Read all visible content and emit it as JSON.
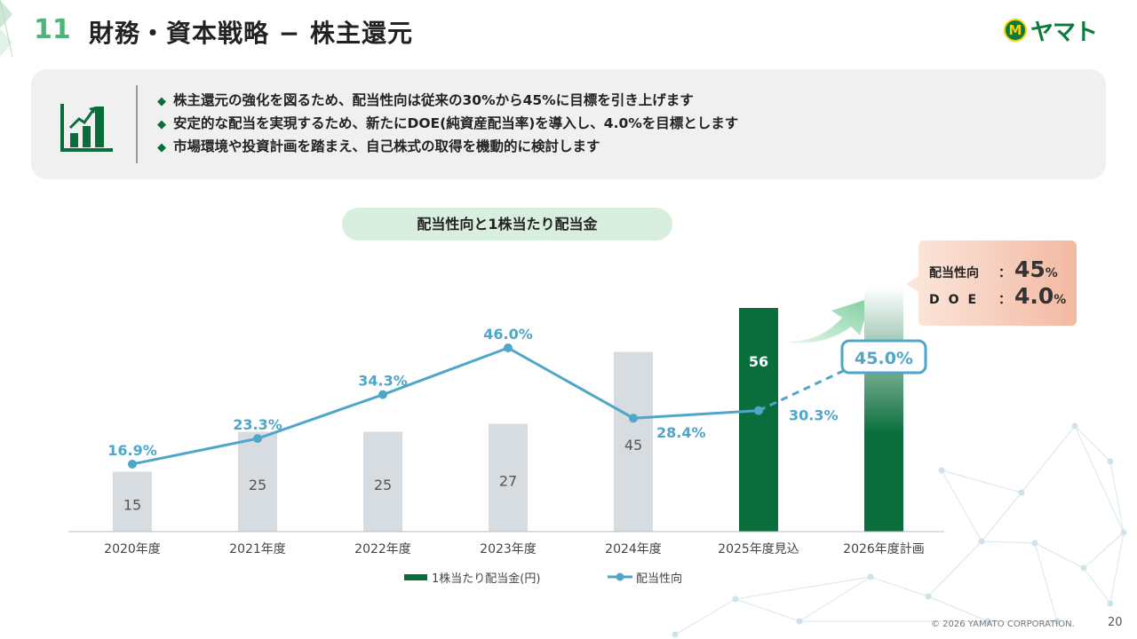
{
  "header": {
    "slide_number": "11",
    "title": "財務・資本戦略 − 株主還元",
    "logo_text": "ヤマト",
    "logo_mark": "M"
  },
  "summary": {
    "icon": "bar-chart-growth-icon",
    "bullets": [
      "株主還元の強化を図るため、配当性向は従来の30%から45%に目標を引き上げます",
      "安定的な配当を実現するため、新たにDOE(純資産配当率)を導入し、4.0%を目標とします",
      "市場環境や投資計画を踏まえ、自己株式の取得を機動的に検討します"
    ],
    "bullet_marker": "◆"
  },
  "callout": {
    "payout_label": "配当性向",
    "payout_colon": "：",
    "payout_value": "45",
    "payout_unit": "%",
    "doe_label": "DOE",
    "doe_colon": "：",
    "doe_value": "4.0",
    "doe_unit": "%"
  },
  "colors": {
    "accent_green": "#4bb57a",
    "dark_green": "#0a6e3c",
    "bar_gray": "#d6dcdf",
    "line_blue": "#4fa6c9",
    "callout_orange": "#f3b9a2"
  },
  "chart_data": {
    "type": "bar",
    "title": "配当性向と1株当たり配当金",
    "categories": [
      "2020年度",
      "2021年度",
      "2022年度",
      "2023年度",
      "2024年度",
      "2025年度見込",
      "2026年度計画"
    ],
    "series": [
      {
        "name": "1株当たり配当金(円)",
        "type": "bar",
        "values": [
          15,
          25,
          25,
          27,
          45,
          56,
          null
        ],
        "labels": [
          "15",
          "25",
          "25",
          "27",
          "45",
          "56",
          ""
        ],
        "styles": [
          "gray",
          "gray",
          "gray",
          "gray",
          "gray",
          "green",
          "gradient-green"
        ],
        "ylim": [
          0,
          80
        ]
      },
      {
        "name": "配当性向",
        "type": "line",
        "values": [
          16.9,
          23.3,
          34.3,
          46.0,
          28.4,
          30.3,
          45.0
        ],
        "labels": [
          "16.9%",
          "23.3%",
          "34.3%",
          "46.0%",
          "28.4%",
          "30.3%",
          "45.0%"
        ],
        "dashed_from_index": 5,
        "highlight_index": 6,
        "ylim": [
          0,
          80
        ]
      }
    ],
    "legend_position": "bottom",
    "grid": false
  },
  "footer": {
    "copyright": "© 2026 YAMATO CORPORATION.",
    "page_number": "20"
  }
}
